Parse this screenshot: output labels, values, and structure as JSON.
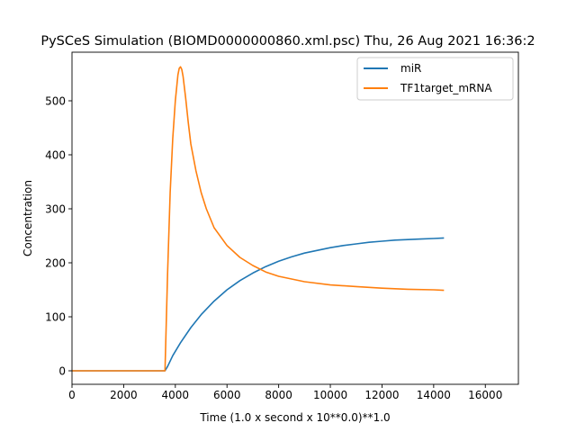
{
  "chart_data": {
    "type": "line",
    "title": "PySCeS Simulation (BIOMD0000000860.xml.psc) Thu, 26 Aug 2021 16:36:2",
    "xlabel": "Time (1.0 x second x 10**0.0)**1.0",
    "ylabel": "Concentration",
    "xlim": [
      0,
      17280
    ],
    "ylim": [
      -25,
      590
    ],
    "xticks": [
      0,
      2000,
      4000,
      6000,
      8000,
      10000,
      12000,
      14000,
      16000
    ],
    "yticks": [
      0,
      100,
      200,
      300,
      400,
      500
    ],
    "grid": false,
    "legend_position": "top-right",
    "series": [
      {
        "name": "miR",
        "color": "#1f77b4",
        "x": [
          0,
          3600,
          3700,
          3900,
          4200,
          4600,
          5000,
          5500,
          6000,
          6500,
          7000,
          7500,
          8000,
          8500,
          9000,
          9500,
          10000,
          10500,
          11000,
          11500,
          12000,
          12500,
          13000,
          13500,
          14000,
          14400
        ],
        "y": [
          0,
          0,
          8,
          28,
          52,
          80,
          104,
          129,
          150,
          167,
          181,
          193,
          203,
          211,
          218,
          223,
          228,
          232,
          235,
          238,
          240,
          242,
          243,
          244,
          245,
          246
        ]
      },
      {
        "name": "TF1target_mRNA",
        "color": "#ff7f0e",
        "x": [
          0,
          3600,
          3700,
          3800,
          3900,
          4000,
          4100,
          4150,
          4200,
          4250,
          4300,
          4400,
          4500,
          4600,
          4800,
          5000,
          5200,
          5500,
          6000,
          6500,
          7000,
          7500,
          8000,
          9000,
          10000,
          11000,
          12000,
          13000,
          14000,
          14400
        ],
        "y": [
          0,
          0,
          180,
          330,
          430,
          500,
          548,
          560,
          563,
          558,
          545,
          505,
          460,
          420,
          370,
          330,
          300,
          265,
          232,
          210,
          195,
          183,
          175,
          165,
          159,
          156,
          153,
          151,
          150,
          149
        ]
      }
    ]
  }
}
